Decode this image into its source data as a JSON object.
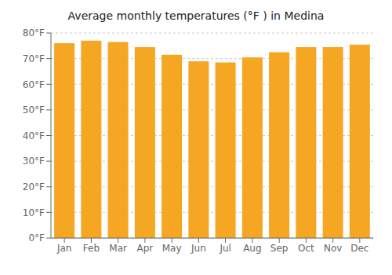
{
  "chart_data": {
    "type": "bar",
    "title": "Average monthly temperatures (°F ) in Medina",
    "categories": [
      "Jan",
      "Feb",
      "Mar",
      "Apr",
      "May",
      "Jun",
      "Jul",
      "Aug",
      "Sep",
      "Oct",
      "Nov",
      "Dec"
    ],
    "values": [
      76,
      77,
      76.5,
      74.5,
      71.5,
      69,
      68.5,
      70.5,
      72.5,
      74.5,
      74.5,
      75.5
    ],
    "color": "#F5A623",
    "ylim": [
      0,
      80
    ],
    "yticks": [
      {
        "value": 0,
        "label": "0°F"
      },
      {
        "value": 10,
        "label": "10°F"
      },
      {
        "value": 20,
        "label": "20°F"
      },
      {
        "value": 30,
        "label": "30°F"
      },
      {
        "value": 40,
        "label": "40°F"
      },
      {
        "value": 50,
        "label": "50°F"
      },
      {
        "value": 60,
        "label": "60°F"
      },
      {
        "value": 70,
        "label": "70°F"
      },
      {
        "value": 80,
        "label": "80°F"
      }
    ],
    "grid": true
  }
}
